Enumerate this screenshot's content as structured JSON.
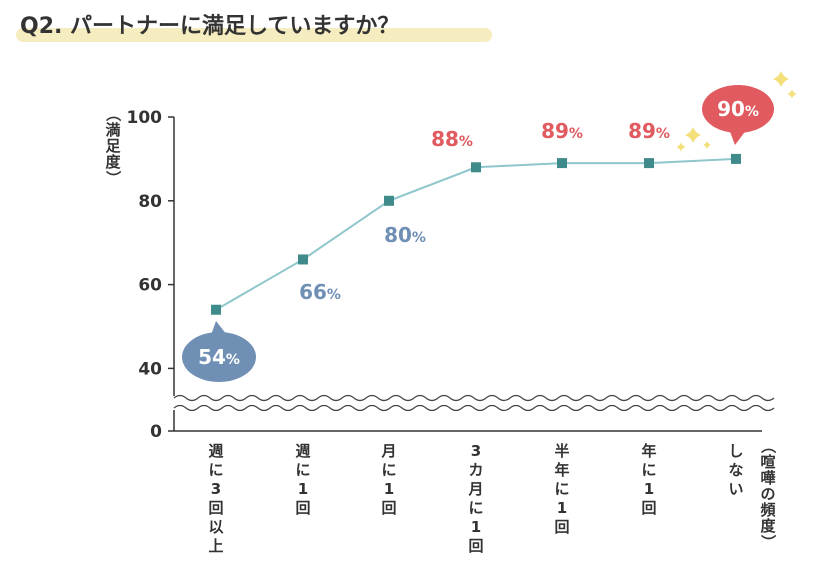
{
  "title": "Q2. パートナーに満足していますか？",
  "colors": {
    "line": "#8fc6cc",
    "marker": "#3f8a8a",
    "blue": "#6f8fb5",
    "red": "#e05a5f",
    "title_highlight": "#f5ecc0",
    "sparkle": "#f3e07a",
    "axis": "#333333"
  },
  "chart_data": {
    "type": "line",
    "title": "Q2. パートナーに満足していますか？",
    "xlabel": "（喧嘩の頻度）",
    "ylabel": "（満足度）",
    "categories": [
      "週に3回以上",
      "週に1回",
      "月に1回",
      "3カ月に1回",
      "半年に1回",
      "年に1回",
      "しない"
    ],
    "values": [
      54,
      66,
      80,
      88,
      89,
      89,
      90
    ],
    "data_labels": [
      "54",
      "66",
      "80",
      "88",
      "89",
      "89",
      "90"
    ],
    "label_unit": "%",
    "label_colors": [
      "blue",
      "blue",
      "blue",
      "red",
      "red",
      "red",
      "red"
    ],
    "ylim": [
      0,
      100
    ],
    "y_ticks": [
      "0",
      "40",
      "60",
      "80",
      "100"
    ],
    "axis_break": true,
    "callouts": [
      0,
      6
    ]
  }
}
